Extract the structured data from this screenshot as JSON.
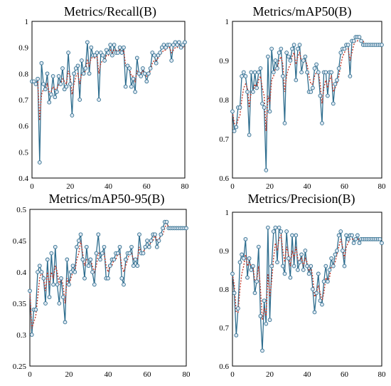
{
  "colors": {
    "series_line": "#2e6d8e",
    "marker_edge": "#2e6d8e",
    "marker_fill": "#dfe8f2",
    "smooth_line": "#c0392b",
    "frame": "#000000"
  },
  "chart_data": [
    {
      "type": "line",
      "title": "Metrics/Recall(B)",
      "xlim": [
        0,
        80
      ],
      "ylim": [
        0.4,
        1.0
      ],
      "xticks": [
        "0",
        "20",
        "40",
        "60",
        "80"
      ],
      "yticks": [
        "0.4",
        "0.5",
        "0.6",
        "0.7",
        "0.8",
        "0.9",
        "1"
      ],
      "grid": false,
      "x": [
        0,
        1,
        2,
        3,
        4,
        5,
        6,
        7,
        8,
        9,
        10,
        11,
        12,
        13,
        14,
        15,
        16,
        17,
        18,
        19,
        20,
        21,
        22,
        23,
        24,
        25,
        26,
        27,
        28,
        29,
        30,
        31,
        32,
        33,
        34,
        35,
        36,
        37,
        38,
        39,
        40,
        41,
        42,
        43,
        44,
        45,
        46,
        47,
        48,
        49,
        50,
        51,
        52,
        53,
        54,
        55,
        56,
        57,
        58,
        59,
        60,
        61,
        62,
        63,
        64,
        65,
        66,
        67,
        68,
        69,
        70,
        71,
        72,
        73,
        74,
        75,
        76,
        77,
        78,
        79,
        80
      ],
      "series": [
        {
          "values": [
            0.77,
            0.77,
            0.76,
            0.78,
            0.46,
            0.84,
            0.76,
            0.74,
            0.8,
            0.69,
            0.72,
            0.79,
            0.71,
            0.73,
            0.79,
            0.76,
            0.82,
            0.74,
            0.75,
            0.88,
            0.76,
            0.64,
            0.8,
            0.82,
            0.83,
            0.7,
            0.85,
            0.8,
            0.82,
            0.92,
            0.8,
            0.9,
            0.87,
            0.87,
            0.88,
            0.7,
            0.88,
            0.87,
            0.85,
            0.89,
            0.88,
            0.91,
            0.87,
            0.91,
            0.88,
            0.88,
            0.9,
            0.88,
            0.9,
            0.75,
            0.83,
            0.82,
            0.75,
            0.78,
            0.73,
            0.86,
            0.8,
            0.79,
            0.82,
            0.8,
            0.77,
            0.8,
            0.82,
            0.88,
            0.87,
            0.84,
            0.87,
            0.88,
            0.9,
            0.91,
            0.9,
            0.91,
            0.91,
            0.85,
            0.91,
            0.92,
            0.91,
            0.92,
            0.9,
            0.91,
            0.92
          ]
        },
        {
          "values": [
            0.77,
            0.77,
            0.76,
            0.77,
            0.62,
            0.72,
            0.74,
            0.74,
            0.76,
            0.73,
            0.73,
            0.75,
            0.74,
            0.74,
            0.76,
            0.76,
            0.78,
            0.77,
            0.76,
            0.81,
            0.79,
            0.72,
            0.76,
            0.79,
            0.8,
            0.76,
            0.8,
            0.8,
            0.81,
            0.85,
            0.83,
            0.86,
            0.86,
            0.86,
            0.87,
            0.8,
            0.84,
            0.85,
            0.85,
            0.87,
            0.87,
            0.89,
            0.88,
            0.89,
            0.89,
            0.88,
            0.89,
            0.88,
            0.89,
            0.83,
            0.83,
            0.82,
            0.79,
            0.79,
            0.77,
            0.81,
            0.8,
            0.8,
            0.81,
            0.8,
            0.79,
            0.8,
            0.81,
            0.84,
            0.85,
            0.85,
            0.86,
            0.87,
            0.88,
            0.89,
            0.89,
            0.9,
            0.9,
            0.88,
            0.89,
            0.9,
            0.9,
            0.91,
            0.9,
            0.9,
            0.91
          ]
        }
      ]
    },
    {
      "type": "line",
      "title": "Metrics/mAP50(B)",
      "xlim": [
        0,
        80
      ],
      "ylim": [
        0.6,
        1.0
      ],
      "xticks": [
        "0",
        "20",
        "40",
        "60",
        "80"
      ],
      "yticks": [
        "0.6",
        "0.7",
        "0.8",
        "0.9",
        "1"
      ],
      "grid": false,
      "x": [
        0,
        1,
        2,
        3,
        4,
        5,
        6,
        7,
        8,
        9,
        10,
        11,
        12,
        13,
        14,
        15,
        16,
        17,
        18,
        19,
        20,
        21,
        22,
        23,
        24,
        25,
        26,
        27,
        28,
        29,
        30,
        31,
        32,
        33,
        34,
        35,
        36,
        37,
        38,
        39,
        40,
        41,
        42,
        43,
        44,
        45,
        46,
        47,
        48,
        49,
        50,
        51,
        52,
        53,
        54,
        55,
        56,
        57,
        58,
        59,
        60,
        61,
        62,
        63,
        64,
        65,
        66,
        67,
        68,
        69,
        70,
        71,
        72,
        73,
        74,
        75,
        76,
        77,
        78,
        79,
        80
      ],
      "series": [
        {
          "values": [
            0.77,
            0.72,
            0.73,
            0.78,
            0.78,
            0.86,
            0.87,
            0.86,
            0.82,
            0.71,
            0.87,
            0.82,
            0.87,
            0.83,
            0.87,
            0.88,
            0.79,
            0.78,
            0.62,
            0.91,
            0.77,
            0.93,
            0.87,
            0.9,
            0.88,
            0.92,
            0.93,
            0.86,
            0.74,
            0.92,
            0.91,
            0.9,
            0.93,
            0.94,
            0.85,
            0.93,
            0.94,
            0.87,
            0.9,
            0.91,
            0.87,
            0.82,
            0.82,
            0.83,
            0.88,
            0.89,
            0.87,
            0.81,
            0.74,
            0.87,
            0.87,
            0.81,
            0.87,
            0.87,
            0.79,
            0.84,
            0.85,
            0.88,
            0.92,
            0.93,
            0.93,
            0.94,
            0.94,
            0.86,
            0.95,
            0.95,
            0.96,
            0.96,
            0.96,
            0.95,
            0.94,
            0.94,
            0.94,
            0.94,
            0.94,
            0.94,
            0.94,
            0.94,
            0.94,
            0.94,
            0.94
          ]
        },
        {
          "values": [
            0.77,
            0.74,
            0.73,
            0.75,
            0.76,
            0.8,
            0.83,
            0.84,
            0.83,
            0.78,
            0.82,
            0.82,
            0.84,
            0.83,
            0.85,
            0.86,
            0.83,
            0.81,
            0.72,
            0.81,
            0.79,
            0.85,
            0.86,
            0.88,
            0.88,
            0.9,
            0.91,
            0.89,
            0.82,
            0.86,
            0.88,
            0.89,
            0.91,
            0.92,
            0.89,
            0.91,
            0.92,
            0.9,
            0.9,
            0.9,
            0.89,
            0.86,
            0.84,
            0.84,
            0.86,
            0.87,
            0.87,
            0.84,
            0.79,
            0.83,
            0.85,
            0.83,
            0.85,
            0.86,
            0.82,
            0.83,
            0.84,
            0.86,
            0.89,
            0.91,
            0.92,
            0.93,
            0.93,
            0.9,
            0.92,
            0.94,
            0.95,
            0.95,
            0.96,
            0.95,
            0.95,
            0.94,
            0.94,
            0.94,
            0.94,
            0.94,
            0.94,
            0.94,
            0.94,
            0.94,
            0.94
          ]
        }
      ]
    },
    {
      "type": "line",
      "title": "Metrics/mAP50-95(B)",
      "xlim": [
        0,
        80
      ],
      "ylim": [
        0.25,
        0.5
      ],
      "xticks": [
        "0",
        "20",
        "40",
        "60",
        "80"
      ],
      "yticks": [
        "0.25",
        "0.3",
        "0.35",
        "0.4",
        "0.45",
        "0.5"
      ],
      "grid": false,
      "x": [
        0,
        1,
        2,
        3,
        4,
        5,
        6,
        7,
        8,
        9,
        10,
        11,
        12,
        13,
        14,
        15,
        16,
        17,
        18,
        19,
        20,
        21,
        22,
        23,
        24,
        25,
        26,
        27,
        28,
        29,
        30,
        31,
        32,
        33,
        34,
        35,
        36,
        37,
        38,
        39,
        40,
        41,
        42,
        43,
        44,
        45,
        46,
        47,
        48,
        49,
        50,
        51,
        52,
        53,
        54,
        55,
        56,
        57,
        58,
        59,
        60,
        61,
        62,
        63,
        64,
        65,
        66,
        67,
        68,
        69,
        70,
        71,
        72,
        73,
        74,
        75,
        76,
        77,
        78,
        79,
        80
      ],
      "series": [
        {
          "values": [
            0.37,
            0.3,
            0.34,
            0.34,
            0.4,
            0.41,
            0.4,
            0.39,
            0.35,
            0.42,
            0.36,
            0.43,
            0.38,
            0.44,
            0.38,
            0.35,
            0.39,
            0.36,
            0.32,
            0.42,
            0.38,
            0.4,
            0.41,
            0.4,
            0.44,
            0.45,
            0.46,
            0.42,
            0.39,
            0.44,
            0.41,
            0.42,
            0.4,
            0.38,
            0.43,
            0.46,
            0.42,
            0.43,
            0.44,
            0.39,
            0.39,
            0.41,
            0.42,
            0.42,
            0.43,
            0.43,
            0.44,
            0.39,
            0.38,
            0.42,
            0.43,
            0.43,
            0.44,
            0.41,
            0.42,
            0.41,
            0.46,
            0.43,
            0.43,
            0.44,
            0.45,
            0.44,
            0.45,
            0.46,
            0.46,
            0.44,
            0.45,
            0.46,
            0.47,
            0.48,
            0.48,
            0.47,
            0.47,
            0.47,
            0.47,
            0.47,
            0.47,
            0.47,
            0.47,
            0.47,
            0.47
          ]
        },
        {
          "values": [
            0.37,
            0.31,
            0.32,
            0.33,
            0.36,
            0.39,
            0.4,
            0.39,
            0.37,
            0.4,
            0.38,
            0.4,
            0.39,
            0.41,
            0.4,
            0.38,
            0.39,
            0.38,
            0.35,
            0.39,
            0.38,
            0.39,
            0.4,
            0.4,
            0.42,
            0.43,
            0.45,
            0.43,
            0.41,
            0.42,
            0.42,
            0.42,
            0.41,
            0.4,
            0.41,
            0.43,
            0.43,
            0.43,
            0.43,
            0.41,
            0.4,
            0.41,
            0.41,
            0.42,
            0.42,
            0.43,
            0.43,
            0.41,
            0.4,
            0.41,
            0.42,
            0.43,
            0.43,
            0.42,
            0.42,
            0.42,
            0.44,
            0.43,
            0.43,
            0.44,
            0.44,
            0.44,
            0.45,
            0.45,
            0.46,
            0.45,
            0.45,
            0.46,
            0.46,
            0.47,
            0.48,
            0.47,
            0.47,
            0.47,
            0.47,
            0.47,
            0.47,
            0.47,
            0.47,
            0.47,
            0.47
          ]
        }
      ]
    },
    {
      "type": "line",
      "title": "Metrics/Precision(B)",
      "xlim": [
        0,
        80
      ],
      "ylim": [
        0.6,
        1.0
      ],
      "xticks": [
        "0",
        "20",
        "40",
        "60",
        "80"
      ],
      "yticks": [
        "0.6",
        "0.7",
        "0.8",
        "0.9",
        "1"
      ],
      "grid": false,
      "x": [
        0,
        1,
        2,
        3,
        4,
        5,
        6,
        7,
        8,
        9,
        10,
        11,
        12,
        13,
        14,
        15,
        16,
        17,
        18,
        19,
        20,
        21,
        22,
        23,
        24,
        25,
        26,
        27,
        28,
        29,
        30,
        31,
        32,
        33,
        34,
        35,
        36,
        37,
        38,
        39,
        40,
        41,
        42,
        43,
        44,
        45,
        46,
        47,
        48,
        49,
        50,
        51,
        52,
        53,
        54,
        55,
        56,
        57,
        58,
        59,
        60,
        61,
        62,
        63,
        64,
        65,
        66,
        67,
        68,
        69,
        70,
        71,
        72,
        73,
        74,
        75,
        76,
        77,
        78,
        79,
        80
      ],
      "series": [
        {
          "values": [
            0.84,
            0.79,
            0.68,
            0.75,
            0.87,
            0.89,
            0.88,
            0.93,
            0.83,
            0.88,
            0.85,
            0.86,
            0.79,
            0.82,
            0.91,
            0.73,
            0.64,
            0.77,
            0.71,
            0.96,
            0.72,
            0.86,
            0.95,
            0.96,
            0.87,
            0.96,
            0.95,
            0.86,
            0.84,
            0.95,
            0.88,
            0.83,
            0.94,
            0.86,
            0.94,
            0.85,
            0.87,
            0.89,
            0.85,
            0.9,
            0.86,
            0.84,
            0.86,
            0.8,
            0.74,
            0.79,
            0.84,
            0.77,
            0.76,
            0.82,
            0.86,
            0.82,
            0.85,
            0.88,
            0.86,
            0.89,
            0.9,
            0.94,
            0.95,
            0.9,
            0.86,
            0.94,
            0.93,
            0.94,
            0.94,
            0.92,
            0.93,
            0.94,
            0.92,
            0.93,
            0.93,
            0.93,
            0.93,
            0.93,
            0.93,
            0.93,
            0.93,
            0.93,
            0.93,
            0.93,
            0.92
          ]
        },
        {
          "values": [
            0.84,
            0.81,
            0.74,
            0.74,
            0.8,
            0.84,
            0.86,
            0.89,
            0.86,
            0.87,
            0.86,
            0.86,
            0.82,
            0.82,
            0.86,
            0.8,
            0.72,
            0.75,
            0.73,
            0.84,
            0.78,
            0.82,
            0.88,
            0.92,
            0.9,
            0.93,
            0.94,
            0.9,
            0.87,
            0.91,
            0.89,
            0.86,
            0.9,
            0.88,
            0.91,
            0.88,
            0.87,
            0.88,
            0.86,
            0.88,
            0.87,
            0.85,
            0.86,
            0.83,
            0.78,
            0.79,
            0.81,
            0.79,
            0.77,
            0.79,
            0.83,
            0.82,
            0.83,
            0.86,
            0.86,
            0.87,
            0.89,
            0.91,
            0.93,
            0.91,
            0.88,
            0.91,
            0.92,
            0.93,
            0.93,
            0.93,
            0.93,
            0.93,
            0.93,
            0.93,
            0.93,
            0.93,
            0.93,
            0.93,
            0.93,
            0.93,
            0.93,
            0.93,
            0.93,
            0.93,
            0.92
          ]
        }
      ]
    }
  ]
}
